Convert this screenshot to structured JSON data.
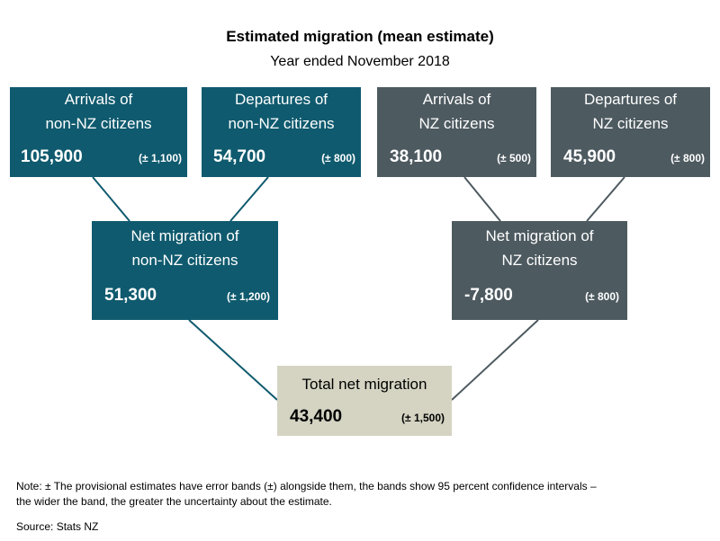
{
  "title": "Estimated migration (mean estimate)",
  "subtitle": "Year ended November 2018",
  "colors": {
    "non_nz": "#0f5a6e",
    "nz": "#4d5a60",
    "total": "#d5d4c3"
  },
  "boxes": {
    "arrivals_non_nz": {
      "label_line1": "Arrivals of",
      "label_line2": "non-NZ citizens",
      "value": "105,900",
      "error": "(± 1,100)"
    },
    "departures_non_nz": {
      "label_line1": "Departures of",
      "label_line2": "non-NZ citizens",
      "value": "54,700",
      "error": "(± 800)"
    },
    "arrivals_nz": {
      "label_line1": "Arrivals of",
      "label_line2": "NZ citizens",
      "value": "38,100",
      "error": "(± 500)"
    },
    "departures_nz": {
      "label_line1": "Departures of",
      "label_line2": "NZ citizens",
      "value": "45,900",
      "error": "(± 800)"
    },
    "net_non_nz": {
      "label_line1": "Net migration of",
      "label_line2": "non-NZ citizens",
      "value": "51,300",
      "error": "(± 1,200)"
    },
    "net_nz": {
      "label_line1": "Net migration of",
      "label_line2": "NZ citizens",
      "value": "-7,800",
      "error": "(± 800)"
    },
    "total": {
      "label_line1": "Total net migration",
      "value": "43,400",
      "error": "(± 1,500)"
    }
  },
  "note_line1": "Note: ± The provisional estimates have error bands (±) alongside them, the bands show 95 percent confidence intervals –",
  "note_line2": "the wider the band, the greater the uncertainty about the estimate.",
  "source": "Source: Stats NZ"
}
